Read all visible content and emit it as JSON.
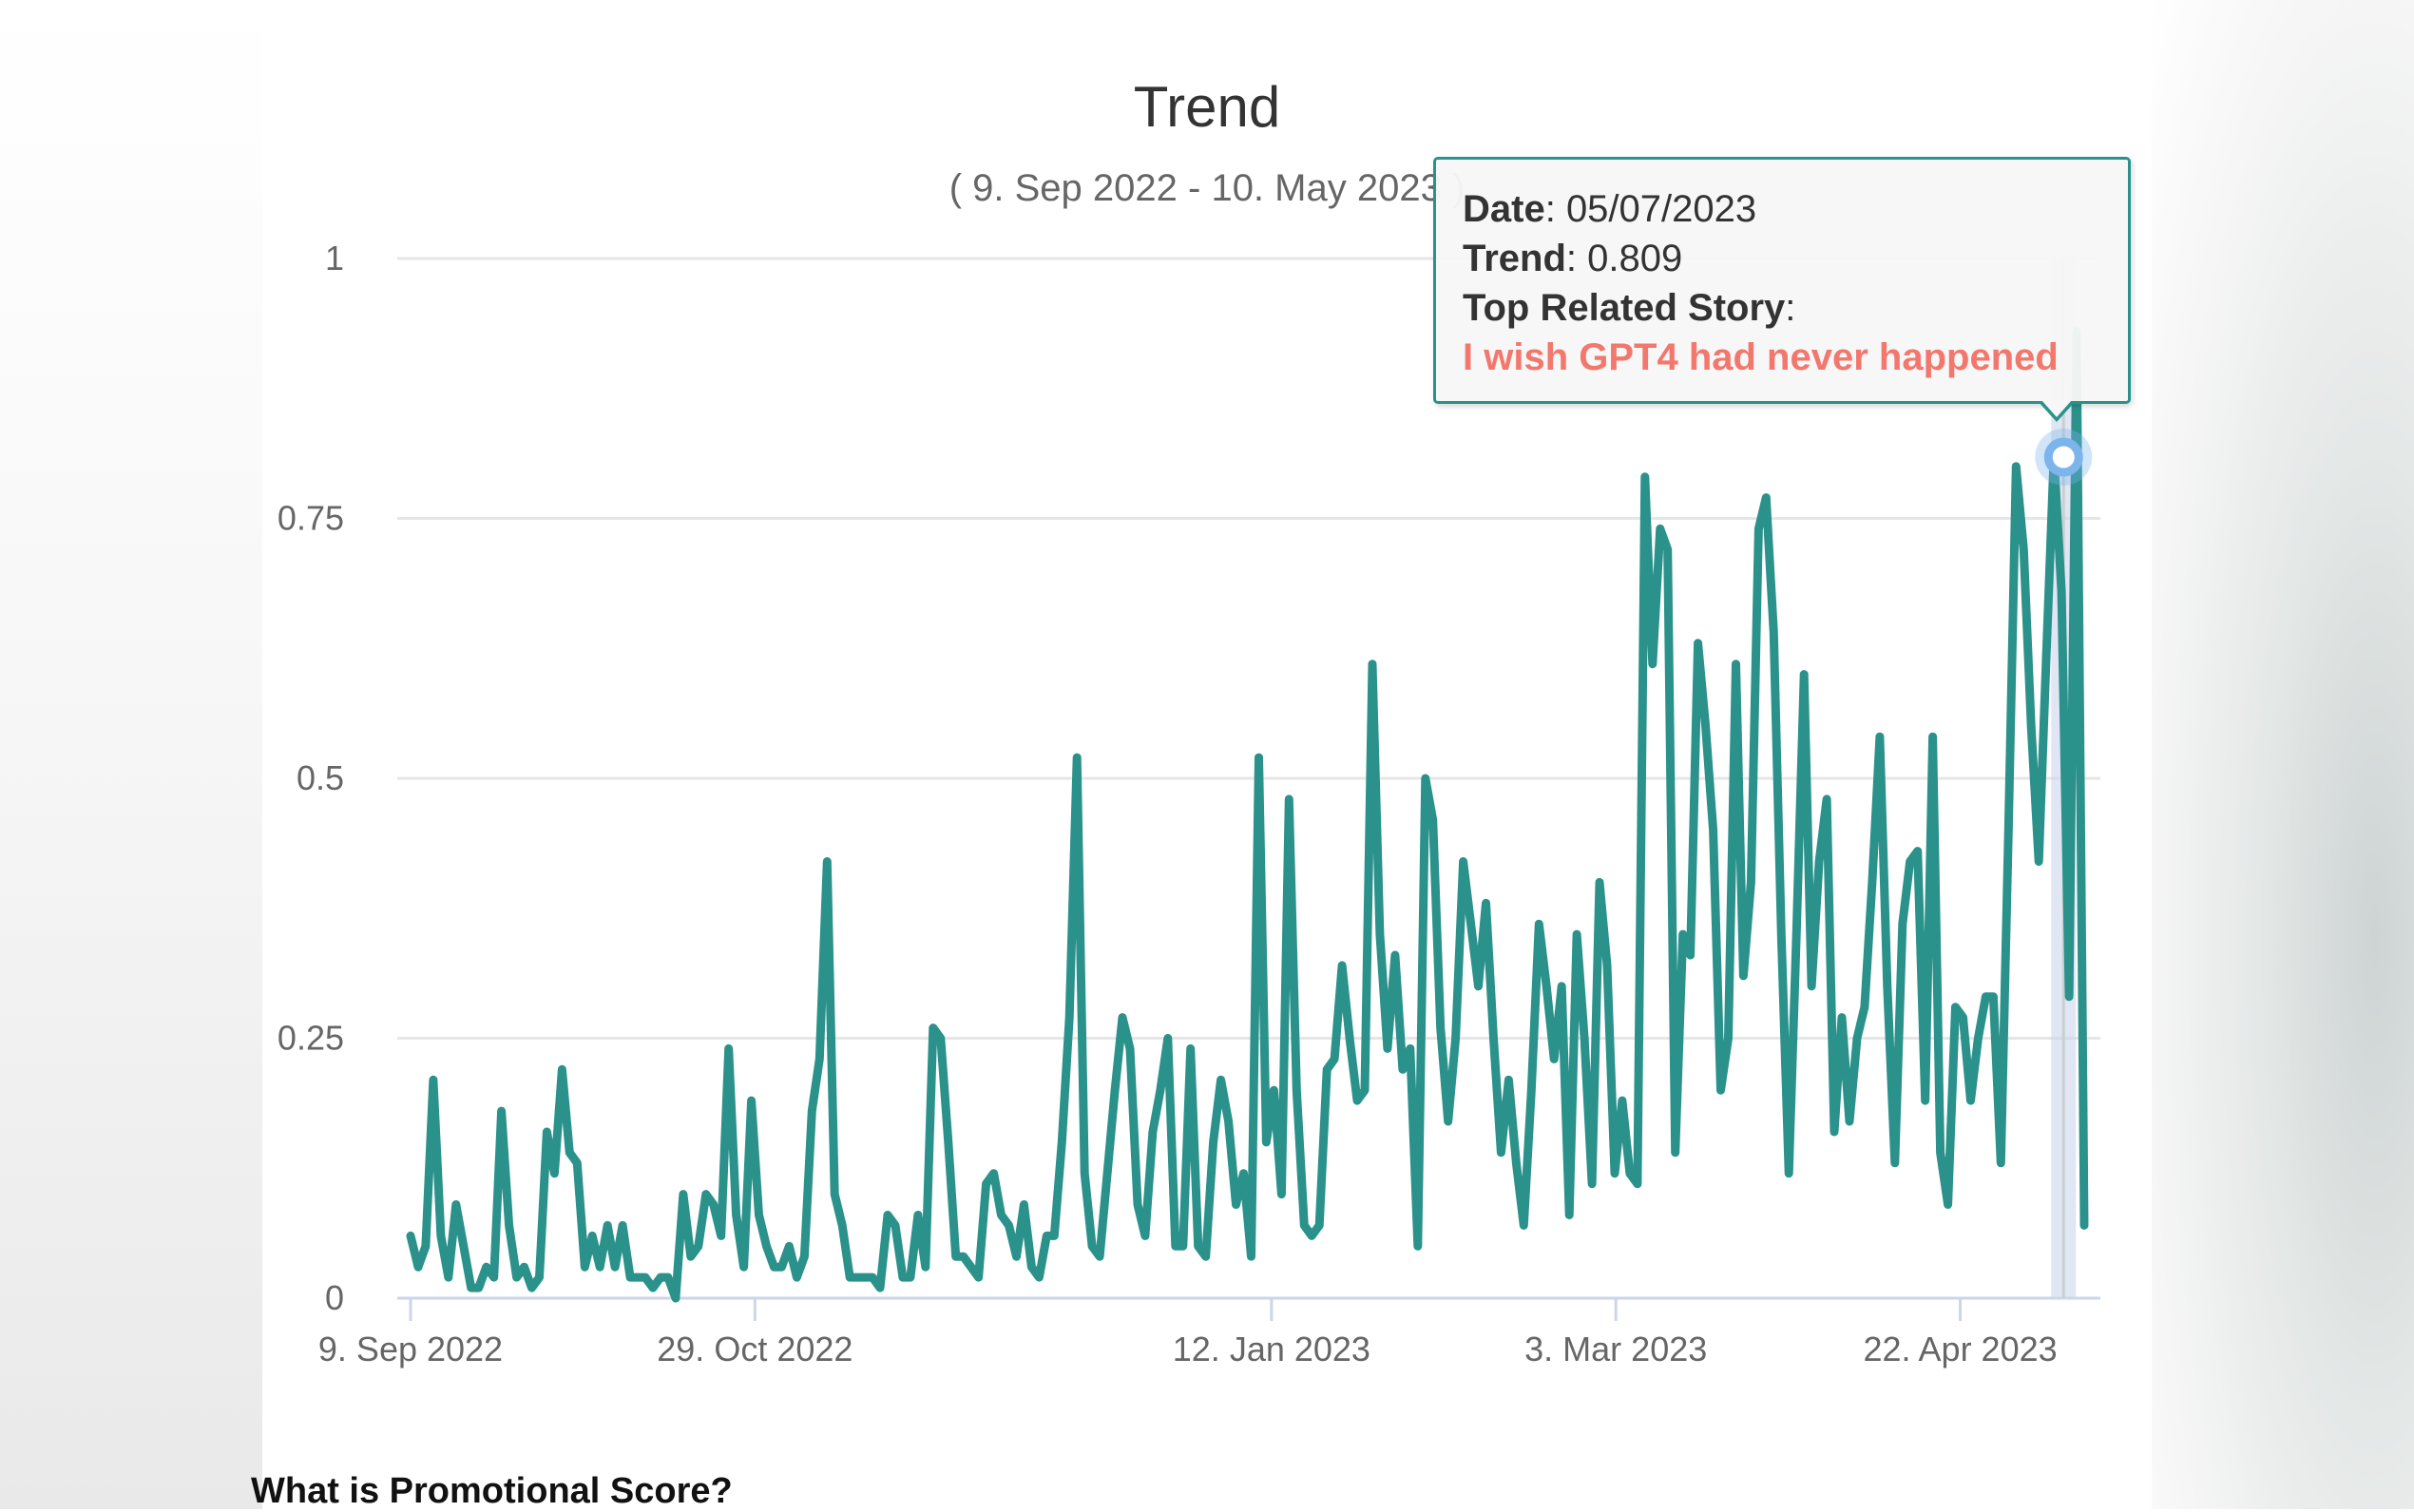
{
  "colors": {
    "series": "#2a918b",
    "grid": "#e6e6e6",
    "axis": "#ccd6eb",
    "tooltip_border": "#2a918b",
    "story": "#f2776d",
    "marker": "#7cb5ec"
  },
  "tooltip": {
    "date_label": "Date",
    "date_value": "05/07/2023",
    "trend_label": "Trend",
    "trend_value": "0.809",
    "story_label": "Top Related Story",
    "story_text": "I wish GPT4 had never happened"
  },
  "section_heading": "What is Promotional Score?",
  "chart_data": {
    "type": "line",
    "title": "Trend",
    "subtitle": "( 9. Sep 2022 - 10. May 2023 )",
    "xlabel": "",
    "ylabel": "",
    "ylim": [
      0,
      1
    ],
    "yticks": [
      "0",
      "0.25",
      "0.5",
      "0.75",
      "1"
    ],
    "xticks": [
      "9. Sep 2022",
      "29. Oct 2022",
      "12. Jan 2023",
      "3. Mar 2023",
      "22. Apr 2023"
    ],
    "x_start": "2022-09-09",
    "x_end": "2023-05-10",
    "highlight": {
      "date": "05/07/2023",
      "value": 0.809
    },
    "series": [
      {
        "name": "Trend",
        "values": [
          0.06,
          0.03,
          0.05,
          0.21,
          0.06,
          0.02,
          0.09,
          0.05,
          0.01,
          0.01,
          0.03,
          0.02,
          0.18,
          0.07,
          0.02,
          0.03,
          0.01,
          0.02,
          0.16,
          0.12,
          0.22,
          0.14,
          0.13,
          0.03,
          0.06,
          0.03,
          0.07,
          0.03,
          0.07,
          0.02,
          0.02,
          0.02,
          0.01,
          0.02,
          0.02,
          0.0,
          0.1,
          0.04,
          0.05,
          0.1,
          0.09,
          0.06,
          0.24,
          0.08,
          0.03,
          0.19,
          0.08,
          0.05,
          0.03,
          0.03,
          0.05,
          0.02,
          0.04,
          0.18,
          0.23,
          0.42,
          0.1,
          0.07,
          0.02,
          0.02,
          0.02,
          0.02,
          0.01,
          0.08,
          0.07,
          0.02,
          0.02,
          0.08,
          0.03,
          0.26,
          0.25,
          0.15,
          0.04,
          0.04,
          0.03,
          0.02,
          0.11,
          0.12,
          0.08,
          0.07,
          0.04,
          0.09,
          0.03,
          0.02,
          0.06,
          0.06,
          0.15,
          0.27,
          0.52,
          0.12,
          0.05,
          0.04,
          0.12,
          0.2,
          0.27,
          0.24,
          0.09,
          0.06,
          0.16,
          0.2,
          0.25,
          0.05,
          0.05,
          0.24,
          0.05,
          0.04,
          0.15,
          0.21,
          0.17,
          0.09,
          0.12,
          0.04,
          0.52,
          0.15,
          0.2,
          0.1,
          0.48,
          0.2,
          0.07,
          0.06,
          0.07,
          0.22,
          0.23,
          0.32,
          0.25,
          0.19,
          0.2,
          0.61,
          0.35,
          0.24,
          0.33,
          0.22,
          0.24,
          0.05,
          0.5,
          0.46,
          0.26,
          0.17,
          0.25,
          0.42,
          0.36,
          0.3,
          0.38,
          0.25,
          0.14,
          0.21,
          0.13,
          0.07,
          0.2,
          0.36,
          0.3,
          0.23,
          0.3,
          0.08,
          0.35,
          0.25,
          0.11,
          0.4,
          0.32,
          0.12,
          0.19,
          0.12,
          0.11,
          0.79,
          0.61,
          0.74,
          0.72,
          0.14,
          0.35,
          0.33,
          0.63,
          0.55,
          0.45,
          0.2,
          0.25,
          0.61,
          0.31,
          0.4,
          0.74,
          0.77,
          0.64,
          0.35,
          0.12,
          0.35,
          0.6,
          0.3,
          0.42,
          0.48,
          0.16,
          0.27,
          0.17,
          0.25,
          0.28,
          0.4,
          0.54,
          0.3,
          0.13,
          0.36,
          0.42,
          0.43,
          0.19,
          0.54,
          0.14,
          0.09,
          0.28,
          0.27,
          0.19,
          0.25,
          0.29,
          0.29,
          0.13,
          0.45,
          0.8,
          0.72,
          0.55,
          0.42,
          0.62,
          0.81,
          0.68,
          0.29,
          0.93,
          0.07
        ]
      }
    ]
  }
}
